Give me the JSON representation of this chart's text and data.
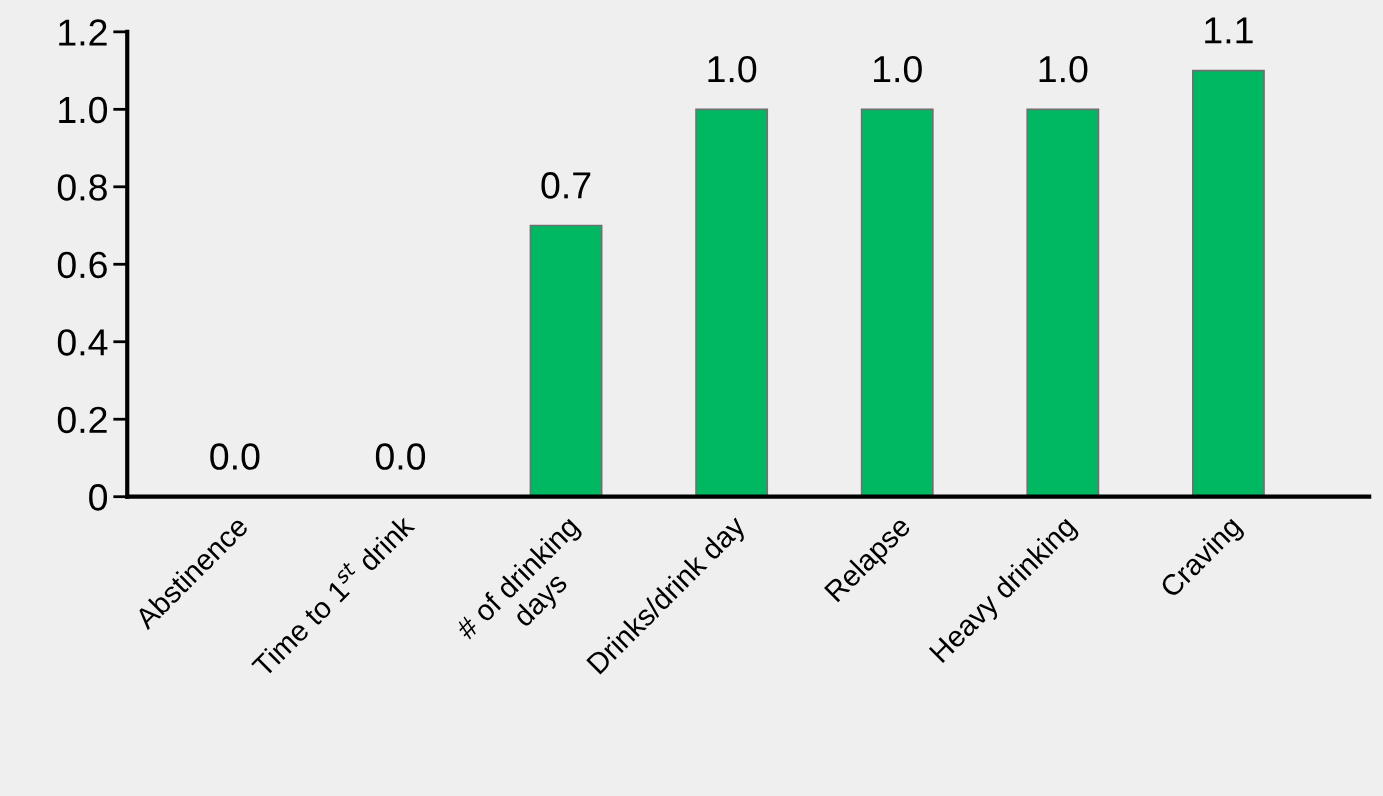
{
  "chart_data": {
    "type": "bar",
    "categories": [
      "Abstinence",
      "Time to 1$^{st}$ drink",
      "# of drinking\ndays",
      "Drinks/drink day",
      "Relapse",
      "Heavy drinking",
      "Craving"
    ],
    "values": [
      0.0,
      0.0,
      0.7,
      1.0,
      1.0,
      1.0,
      1.1
    ],
    "value_labels": [
      "0.0",
      "0.0",
      "0.7",
      "1.0",
      "1.0",
      "1.0",
      "1.1"
    ],
    "color": "#00b861",
    "ylim": [
      0,
      1.2
    ],
    "yticks": [
      0,
      0.2,
      0.4,
      0.6,
      0.8,
      {
        "value": 1.0,
        "label": "1.0"
      },
      1.2
    ],
    "grid": false,
    "legend": false
  }
}
